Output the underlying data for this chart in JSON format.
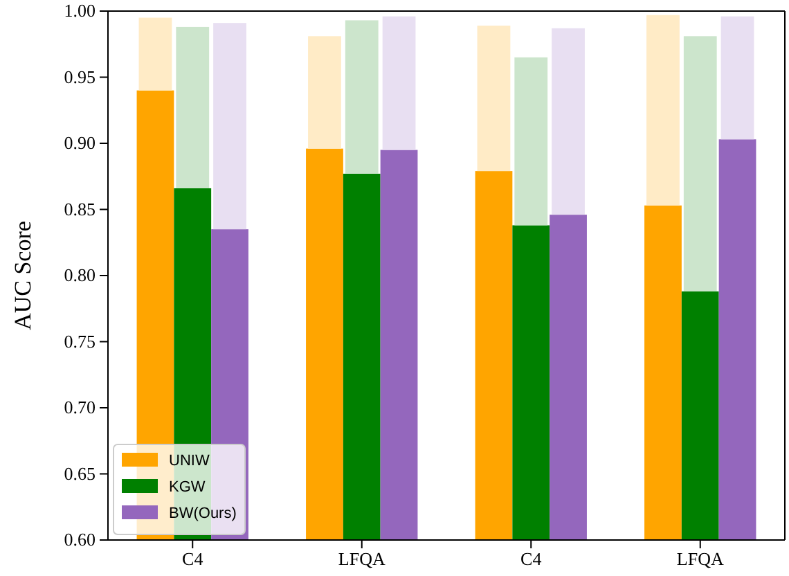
{
  "chart_data": {
    "type": "bar",
    "ylabel": "AUC Score",
    "categories": [
      "C4",
      "LFQA",
      "C4",
      "LFQA"
    ],
    "ylim": [
      0.6,
      1.0
    ],
    "yticks": [
      {
        "value": 0.6,
        "label": "0.60"
      },
      0.65,
      {
        "value": 0.7,
        "label": "0.70"
      },
      0.75,
      {
        "value": 0.8,
        "label": "0.80"
      },
      0.85,
      {
        "value": 0.9,
        "label": "0.90"
      },
      0.95,
      {
        "value": 1.0,
        "label": "1.00"
      }
    ],
    "legend": "bottom left",
    "series": [
      {
        "name": "UNIW",
        "color": "#ffa500",
        "values": [
          0.94,
          0.896,
          0.879,
          0.853
        ]
      },
      {
        "color": "#ffebc6",
        "values": [
          0.055,
          0.085,
          0.11,
          0.144
        ],
        "base": [
          0.94,
          0.896,
          0.879,
          0.853
        ]
      },
      {
        "name": "KGW",
        "color": "#008000",
        "values": [
          0.866,
          0.877,
          0.838,
          0.788
        ]
      },
      {
        "color": "#cce5cc",
        "values": [
          0.122,
          0.116,
          0.127,
          0.193
        ],
        "base": [
          0.866,
          0.877,
          0.838,
          0.788
        ]
      },
      {
        "name": "BW(Ours)",
        "color": "#9467bd",
        "values": [
          0.835,
          0.895,
          0.846,
          0.903
        ]
      },
      {
        "color": "#e8dff2",
        "values": [
          0.156,
          0.101,
          0.141,
          0.093
        ],
        "base": [
          0.835,
          0.895,
          0.846,
          0.903
        ]
      }
    ]
  }
}
